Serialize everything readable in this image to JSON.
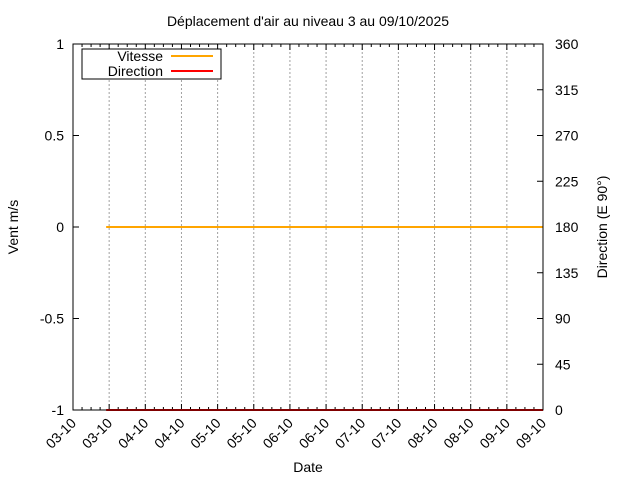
{
  "chart_data": {
    "type": "line",
    "title": "Déplacement d'air au niveau 3 au 09/10/2025",
    "xlabel": "Date",
    "ylabel": "Vent m/s",
    "y2label": "Direction (E 90°)",
    "ylim": [
      -1,
      1
    ],
    "y2lim": [
      0,
      360
    ],
    "xlim": [
      "03-10 00:00",
      "09-10 12:00"
    ],
    "yticks": [
      "1",
      "0.5",
      "0",
      "-0.5",
      "-1"
    ],
    "y2ticks": [
      "360",
      "315",
      "270",
      "225",
      "180",
      "135",
      "90",
      "45",
      "0"
    ],
    "xticks": [
      "03-10",
      "03-10",
      "04-10",
      "04-10",
      "05-10",
      "05-10",
      "06-10",
      "06-10",
      "07-10",
      "07-10",
      "08-10",
      "08-10",
      "09-10",
      "09-10"
    ],
    "grid": "vertical dotted",
    "legend_position": "top-left",
    "series": [
      {
        "name": "Vitesse",
        "axis": "left",
        "color": "#ffa500",
        "x": [
          "03-10 11:00",
          "09-10 12:00"
        ],
        "y": [
          0,
          0
        ]
      },
      {
        "name": "Direction",
        "axis": "right",
        "color": "#ff0000",
        "x": [
          "03-10 11:00",
          "09-10 12:00"
        ],
        "y": [
          0,
          0
        ]
      }
    ]
  }
}
